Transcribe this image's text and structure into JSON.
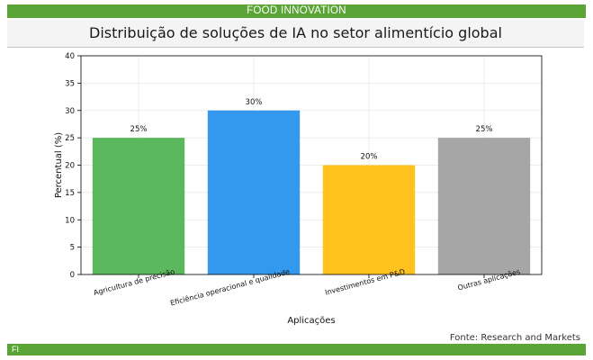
{
  "header": {
    "banner": "FOOD INNOVATION"
  },
  "chart_data": {
    "type": "bar",
    "title": "Distribuição de soluções de IA no setor alimentício global",
    "xlabel": "Aplicações",
    "ylabel": "Percentual (%)",
    "ylim": [
      0,
      40
    ],
    "yticks": [
      0,
      5,
      10,
      15,
      20,
      25,
      30,
      35,
      40
    ],
    "grid": true,
    "categories": [
      "Agricultura de precisão",
      "Eficiência operacional e qualidade",
      "Investimentos em P&D",
      "Outras aplicações"
    ],
    "values": [
      25,
      30,
      20,
      25
    ],
    "data_labels": [
      "25%",
      "30%",
      "20%",
      "25%"
    ],
    "colors": [
      "#5cb85c",
      "#3399ee",
      "#ffc21f",
      "#a6a6a6"
    ]
  },
  "footer": {
    "source": "Fonte: Research and Markets",
    "logo": "FI"
  }
}
